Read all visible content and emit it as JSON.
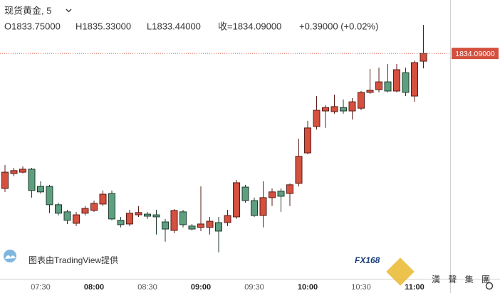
{
  "chart_data": {
    "type": "candlestick",
    "title": "现货黄金, 5",
    "ohlc_header": [
      "O1833.75000",
      "H1835.33000",
      "L1833.44000",
      "收=1834.09000",
      "+0.39000 (+0.02%)"
    ],
    "categories": [
      null,
      null,
      null,
      null,
      "07:30",
      null,
      null,
      null,
      null,
      null,
      "08:00",
      null,
      null,
      null,
      null,
      null,
      "08:30",
      null,
      null,
      null,
      null,
      null,
      "09:00",
      null,
      null,
      null,
      null,
      null,
      "09:30",
      null,
      null,
      null,
      null,
      null,
      "10:00",
      null,
      null,
      null,
      null,
      null,
      "10:30",
      null,
      null,
      null,
      null,
      null,
      "11:00",
      null
    ],
    "open": [
      1828.2,
      1828.85,
      1828.91,
      1829.04,
      1828.29,
      1828.29,
      1827.49,
      1827.18,
      1826.68,
      1827.12,
      1827.24,
      1827.52,
      1827.98,
      1826.81,
      1826.65,
      1827.05,
      1827.08,
      1827.05,
      1826.74,
      1826.37,
      1827.18,
      1826.56,
      1826.5,
      1826.5,
      1826.71,
      1826.71,
      1826.96,
      1828.26,
      1827.67,
      1827.02,
      1827.8,
      1828.08,
      1827.98,
      1828.42,
      1829.75,
      1830.9,
      1831.58,
      1831.55,
      1831.73,
      1831.58,
      1831.7,
      1832.39,
      1832.51,
      1832.85,
      1832.45,
      1833.25,
      1832.23,
      1833.75
    ],
    "high": [
      1829.22,
      1829.1,
      1829.16,
      1829.1,
      1828.51,
      1828.36,
      1827.58,
      1827.27,
      1827.18,
      1827.43,
      1827.67,
      1828.11,
      1828.11,
      1826.96,
      1827.27,
      1827.43,
      1827.18,
      1827.27,
      1826.87,
      1827.3,
      1827.27,
      1826.65,
      1828.29,
      1826.96,
      1826.96,
      1827.27,
      1828.57,
      1828.36,
      1827.8,
      1828.51,
      1828.2,
      1828.2,
      1828.42,
      1830.37,
      1831.15,
      1832.23,
      1831.83,
      1832.29,
      1832.08,
      1832.14,
      1832.45,
      1833.41,
      1833.47,
      1833.63,
      1833.63,
      1833.47,
      1833.78,
      1835.33
    ],
    "low": [
      1828.05,
      1828.73,
      1828.85,
      1827.8,
      1827.98,
      1827.12,
      1827.02,
      1826.65,
      1826.56,
      1827.02,
      1827.18,
      1827.43,
      1826.81,
      1826.5,
      1826.56,
      1826.96,
      1826.87,
      1826.19,
      1825.88,
      1826.25,
      1826.5,
      1826.37,
      1826.34,
      1826.19,
      1825.41,
      1826.56,
      1826.87,
      1827.58,
      1826.96,
      1826.5,
      1827.43,
      1827.18,
      1827.43,
      1828.29,
      1829.69,
      1830.77,
      1830.84,
      1831.46,
      1831.46,
      1831.21,
      1831.61,
      1832.32,
      1832.39,
      1832.39,
      1832.39,
      1832.23,
      1831.98,
      1833.44
    ],
    "close": [
      1828.91,
      1828.98,
      1829.04,
      1828.11,
      1828.05,
      1827.49,
      1827.12,
      1826.81,
      1827.05,
      1827.33,
      1827.55,
      1827.95,
      1826.87,
      1826.62,
      1827.12,
      1827.15,
      1826.99,
      1826.96,
      1826.43,
      1827.24,
      1826.62,
      1826.43,
      1826.65,
      1826.77,
      1826.34,
      1827.02,
      1828.45,
      1827.67,
      1827.02,
      1827.8,
      1828.05,
      1827.86,
      1828.36,
      1829.6,
      1830.84,
      1831.61,
      1831.73,
      1831.77,
      1831.58,
      1831.98,
      1832.39,
      1832.48,
      1832.85,
      1832.45,
      1833.38,
      1832.39,
      1833.69,
      1834.09
    ],
    "up_color": "#d4503f",
    "down_color": "#5e9f80",
    "ylim": [
      1824.26,
      1836.42
    ],
    "last_price": {
      "value": 1834.09,
      "label": "1834.09000"
    },
    "attribution": "图表由TradingView提供",
    "logo": "FX168",
    "logo_sub": "漢 聲 集 團"
  }
}
